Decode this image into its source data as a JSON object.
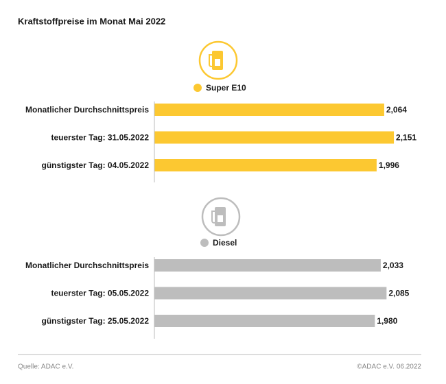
{
  "title": "Kraftstoffpreise im Monat Mai 2022",
  "source": "Quelle: ADAC e.V.",
  "copyright": "©ADAC e.V. 06.2022",
  "chart_data": [
    {
      "type": "bar",
      "orientation": "horizontal",
      "categories": [
        "Monatlicher Durchschnittspreis",
        "teuerster Tag: 31.05.2022",
        "günstigster Tag: 04.05.2022"
      ],
      "series": [
        {
          "name": "Super E10",
          "color": "#fcc831",
          "values": [
            2.064,
            2.151,
            1.996
          ],
          "value_labels": [
            "2,064",
            "2,151",
            "1,996"
          ]
        }
      ],
      "xlim": [
        0,
        2.2
      ]
    },
    {
      "type": "bar",
      "orientation": "horizontal",
      "categories": [
        "Monatlicher Durchschnittspreis",
        "teuerster Tag: 05.05.2022",
        "günstigster Tag: 25.05.2022"
      ],
      "series": [
        {
          "name": "Diesel",
          "color": "#bdbdbd",
          "values": [
            2.033,
            2.085,
            1.98
          ],
          "value_labels": [
            "2,033",
            "2,085",
            "1,980"
          ]
        }
      ],
      "xlim": [
        0,
        2.2
      ]
    }
  ]
}
